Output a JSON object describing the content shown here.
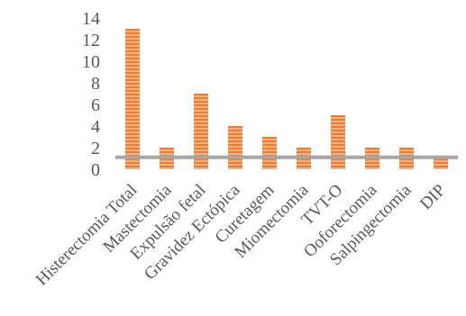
{
  "chart_data": {
    "type": "bar",
    "categories": [
      "Histerectomia Total",
      "Mastectomia",
      "Expulsão fetal",
      "Gravidez Ectópica",
      "Curetagem",
      "Miomectomia",
      "TVT-O",
      "Ooforectomia",
      "Salpingectomia",
      "DIP"
    ],
    "series": [
      {
        "values": [
          13,
          2,
          7,
          4,
          3,
          2,
          5,
          2,
          2,
          1
        ]
      }
    ],
    "yticks": [
      0,
      2,
      4,
      6,
      8,
      10,
      12,
      14
    ],
    "ylim": [
      0,
      14
    ],
    "reference_line": 1.1,
    "grid": false,
    "legend": "none",
    "colors": {
      "bar": "#ED7D31",
      "bar_stripe": "#F4B183",
      "reference_line": "#A6A6A6",
      "text": "#595959"
    }
  }
}
